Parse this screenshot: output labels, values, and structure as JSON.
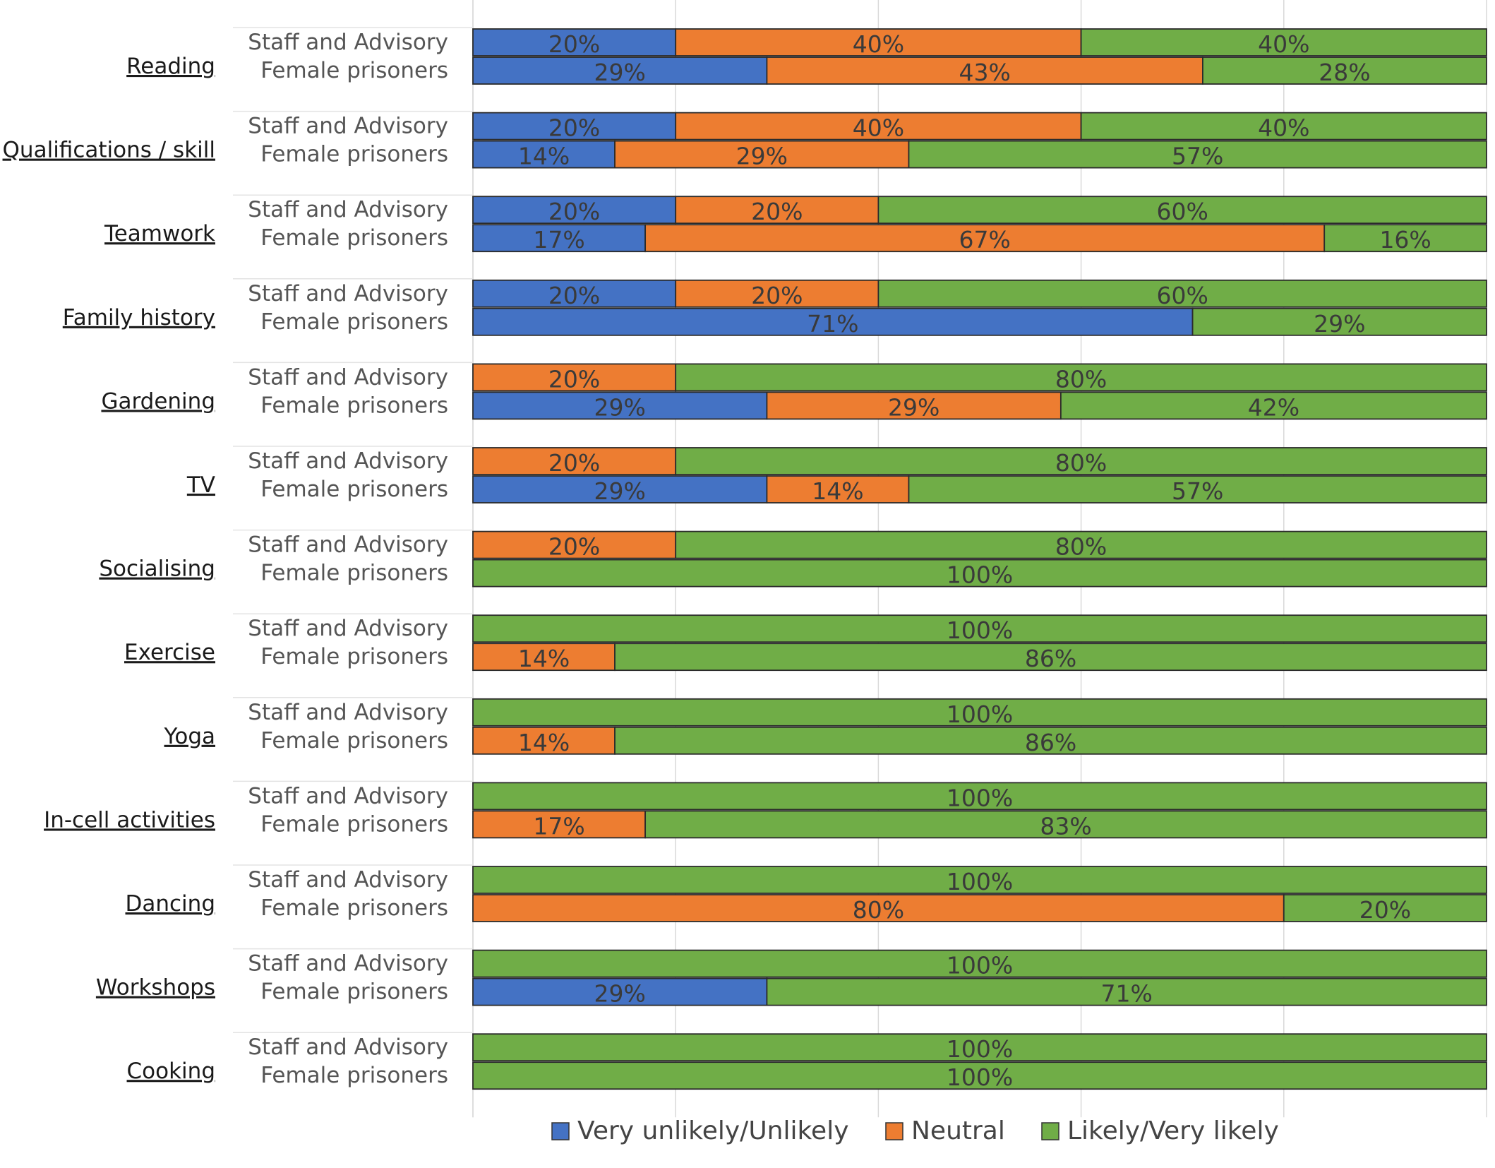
{
  "chart_data": {
    "type": "bar",
    "orientation": "horizontal",
    "stacked": true,
    "percent": true,
    "xlim": [
      0,
      100
    ],
    "grid": true,
    "legend_position": "bottom",
    "groups": [
      "Staff and Advisory",
      "Female prisoners"
    ],
    "series": [
      {
        "name": "Very unlikely/Unlikely",
        "color": "#4472C4"
      },
      {
        "name": "Neutral",
        "color": "#ED7D31"
      },
      {
        "name": "Likely/Very likely",
        "color": "#70AD47"
      }
    ],
    "categories": [
      {
        "name": "Reading",
        "staff": [
          20,
          40,
          40
        ],
        "female": [
          29,
          43,
          28
        ]
      },
      {
        "name": "Qualifications / skill",
        "staff": [
          20,
          40,
          40
        ],
        "female": [
          14,
          29,
          57
        ]
      },
      {
        "name": "Teamwork",
        "staff": [
          20,
          20,
          60
        ],
        "female": [
          17,
          67,
          16
        ]
      },
      {
        "name": "Family history",
        "staff": [
          20,
          20,
          60
        ],
        "female": [
          71,
          0,
          29
        ]
      },
      {
        "name": "Gardening",
        "staff": [
          0,
          20,
          80
        ],
        "female": [
          29,
          29,
          42
        ]
      },
      {
        "name": "TV",
        "staff": [
          0,
          20,
          80
        ],
        "female": [
          29,
          14,
          57
        ]
      },
      {
        "name": "Socialising",
        "staff": [
          0,
          20,
          80
        ],
        "female": [
          0,
          0,
          100
        ]
      },
      {
        "name": "Exercise",
        "staff": [
          0,
          0,
          100
        ],
        "female": [
          0,
          14,
          86
        ]
      },
      {
        "name": "Yoga",
        "staff": [
          0,
          0,
          100
        ],
        "female": [
          0,
          14,
          86
        ]
      },
      {
        "name": "In-cell activities",
        "staff": [
          0,
          0,
          100
        ],
        "female": [
          0,
          17,
          83
        ]
      },
      {
        "name": "Dancing",
        "staff": [
          0,
          0,
          100
        ],
        "female": [
          0,
          80,
          20
        ]
      },
      {
        "name": "Workshops",
        "staff": [
          0,
          0,
          100
        ],
        "female": [
          29,
          0,
          71
        ]
      },
      {
        "name": "Cooking",
        "staff": [
          0,
          0,
          100
        ],
        "female": [
          0,
          0,
          100
        ]
      }
    ]
  }
}
